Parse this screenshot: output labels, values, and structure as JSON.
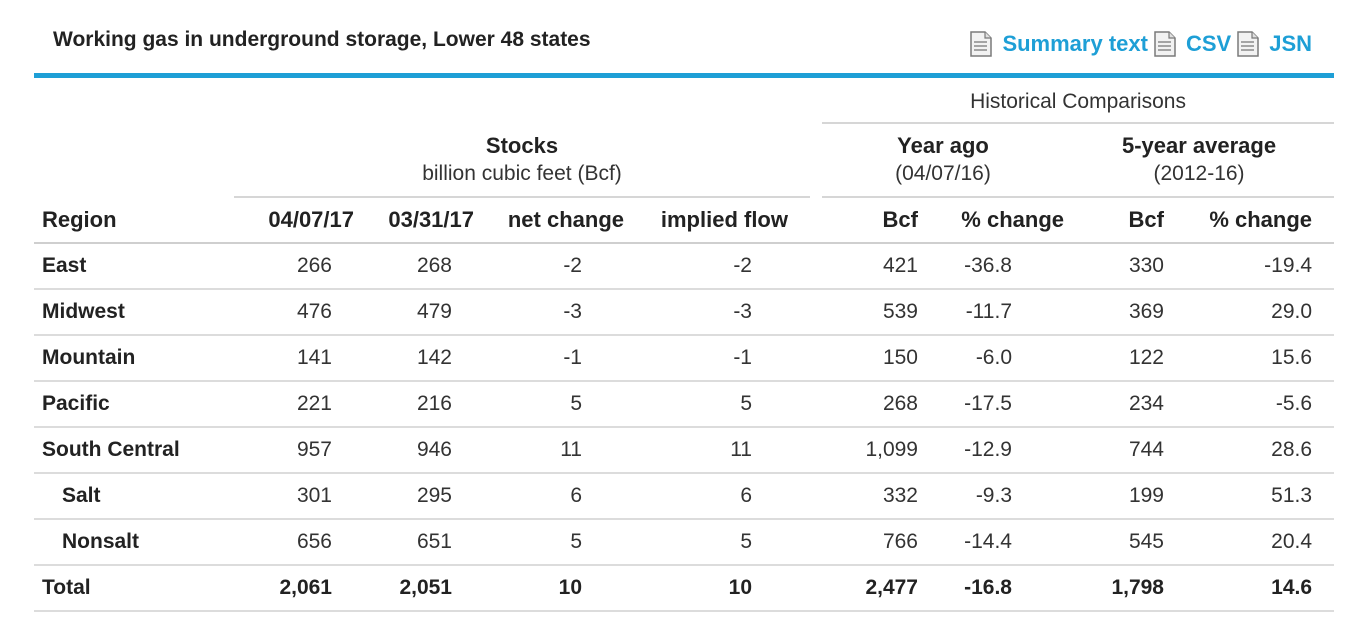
{
  "title": "Working gas in underground storage, Lower 48 states",
  "links": [
    {
      "label": "Summary text",
      "icon": "document-icon"
    },
    {
      "label": "CSV",
      "icon": "document-icon"
    },
    {
      "label": "JSN",
      "icon": "document-icon"
    }
  ],
  "colors": {
    "accent": "#1e9fd6"
  },
  "header": {
    "historical": "Historical Comparisons",
    "stocks_title": "Stocks",
    "stocks_sub": "billion cubic feet (Bcf)",
    "year_ago_title": "Year ago",
    "year_ago_sub": "(04/07/16)",
    "five_year_title": "5-year average",
    "five_year_sub": "(2012-16)"
  },
  "columns": [
    "Region",
    "04/07/17",
    "03/31/17",
    "net change",
    "implied flow",
    "Bcf",
    "% change",
    "Bcf",
    "% change"
  ],
  "rows": [
    {
      "region": "East",
      "v": [
        "266",
        "268",
        "-2",
        "-2",
        "421",
        "-36.8",
        "330",
        "-19.4"
      ]
    },
    {
      "region": "Midwest",
      "v": [
        "476",
        "479",
        "-3",
        "-3",
        "539",
        "-11.7",
        "369",
        "29.0"
      ]
    },
    {
      "region": "Mountain",
      "v": [
        "141",
        "142",
        "-1",
        "-1",
        "150",
        "-6.0",
        "122",
        "15.6"
      ]
    },
    {
      "region": "Pacific",
      "v": [
        "221",
        "216",
        "5",
        "5",
        "268",
        "-17.5",
        "234",
        "-5.6"
      ]
    },
    {
      "region": "South Central",
      "v": [
        "957",
        "946",
        "11",
        "11",
        "1,099",
        "-12.9",
        "744",
        "28.6"
      ]
    },
    {
      "region": "Salt",
      "v": [
        "301",
        "295",
        "6",
        "6",
        "332",
        "-9.3",
        "199",
        "51.3"
      ]
    },
    {
      "region": "Nonsalt",
      "v": [
        "656",
        "651",
        "5",
        "5",
        "766",
        "-14.4",
        "545",
        "20.4"
      ]
    },
    {
      "region": "Total",
      "v": [
        "2,061",
        "2,051",
        "10",
        "10",
        "2,477",
        "-16.8",
        "1,798",
        "14.6"
      ]
    }
  ]
}
